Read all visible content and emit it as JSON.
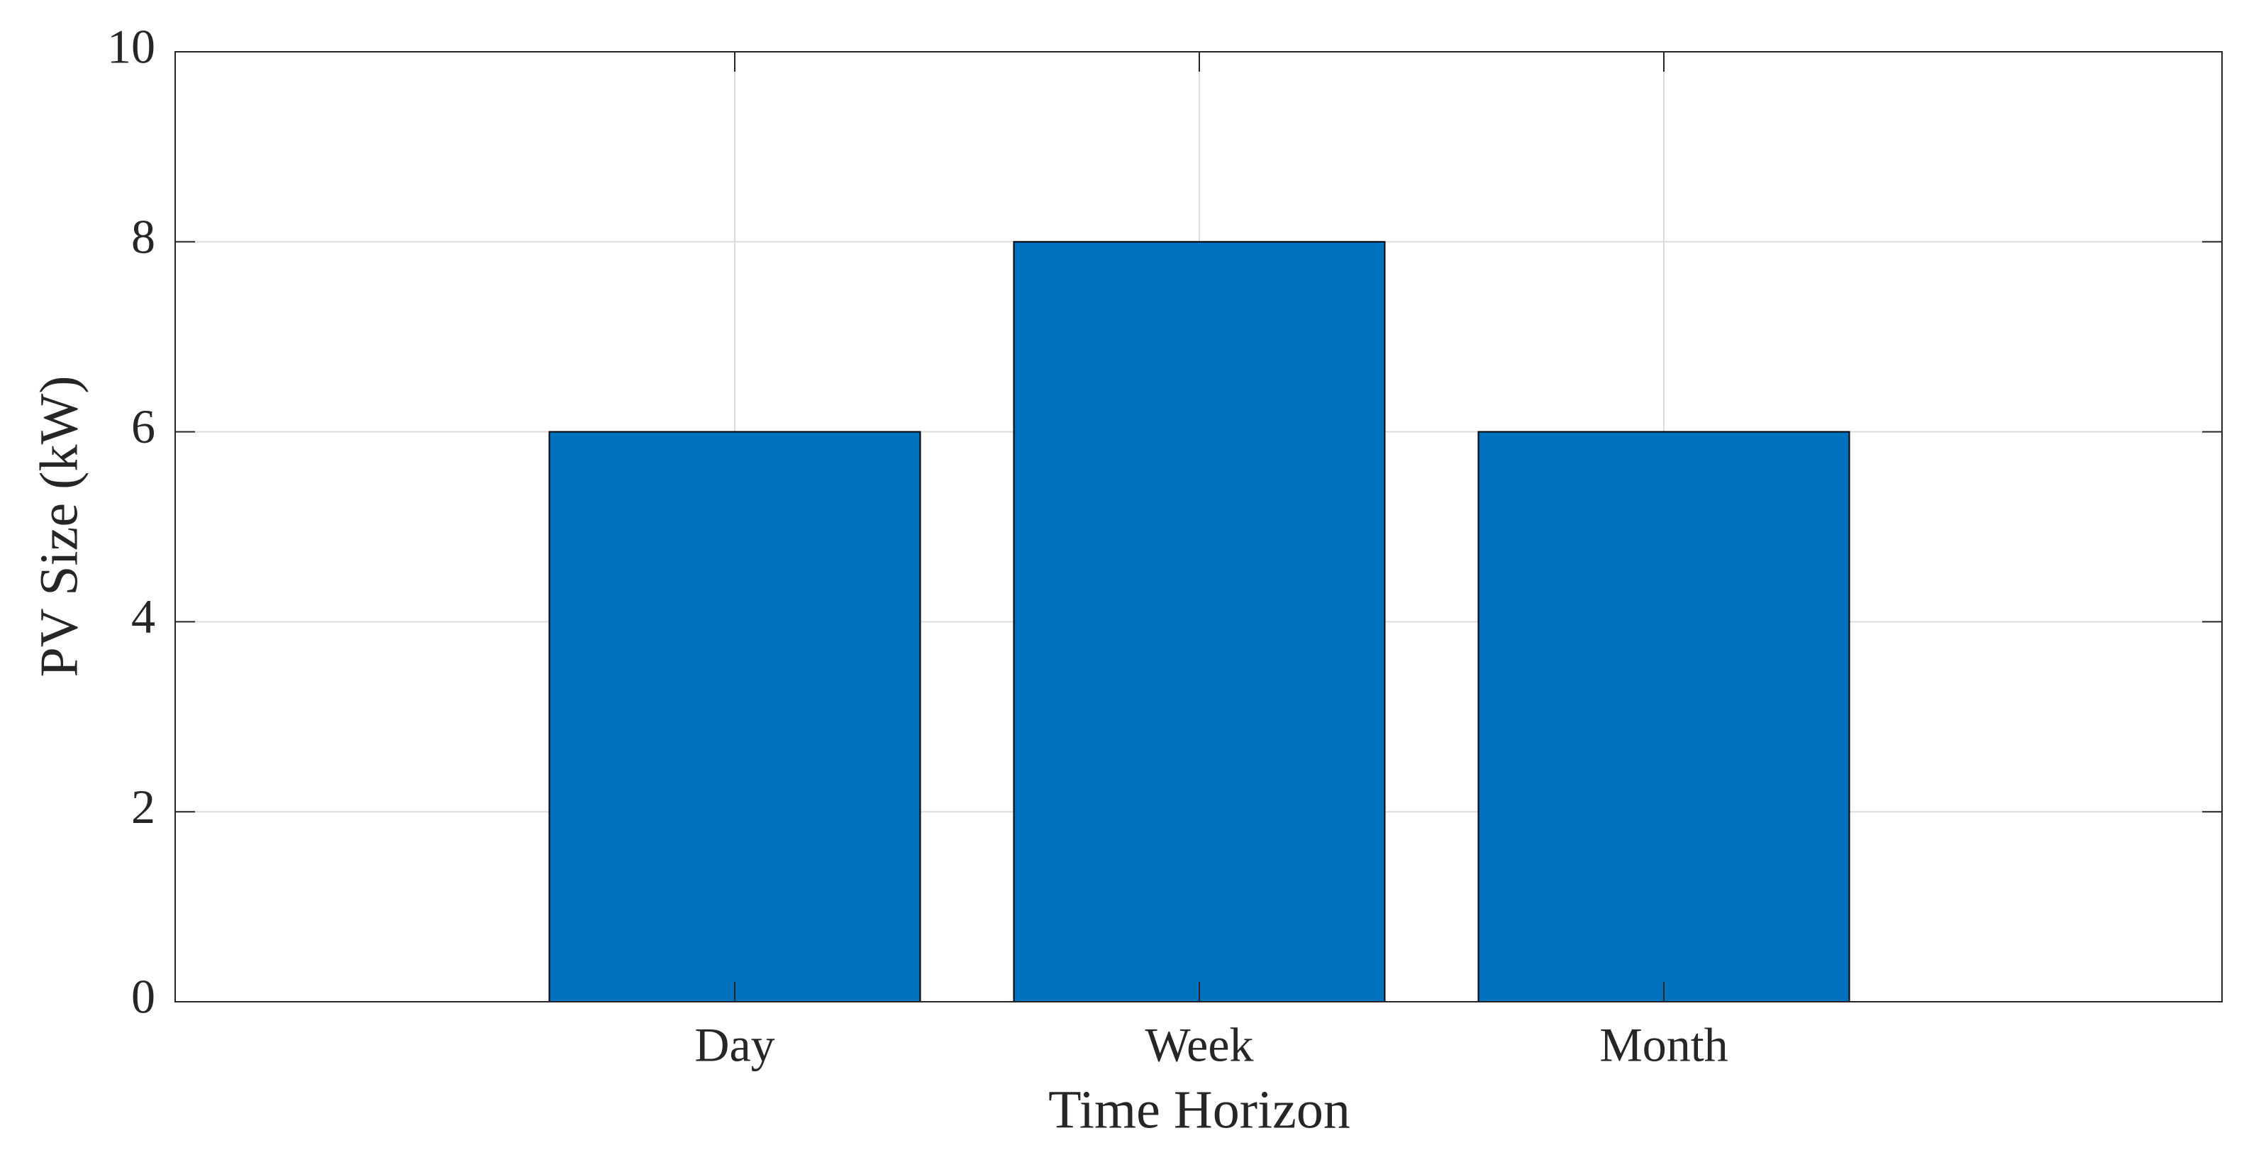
{
  "chart_data": {
    "type": "bar",
    "xlabel": "Time Horizon",
    "ylabel": "PV Size (kW)",
    "categories": [
      "Day",
      "Week",
      "Month"
    ],
    "values": [
      6,
      8,
      6
    ],
    "color": "#0072bd",
    "ylim": [
      0,
      10
    ],
    "yticks": [
      0,
      2,
      4,
      6,
      8,
      10
    ],
    "grid": true
  }
}
